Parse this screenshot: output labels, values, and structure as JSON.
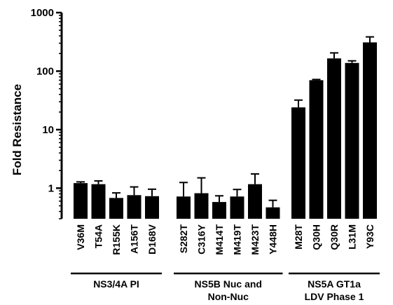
{
  "chart_data": {
    "type": "bar",
    "ylabel": "Fold Resistance",
    "y_scale": "log",
    "ylim": [
      0.3,
      1000
    ],
    "y_ticks": [
      1,
      10,
      100,
      1000
    ],
    "y_tick_labels": [
      "1",
      "10",
      "100",
      "1000"
    ],
    "bar_color": "#000000",
    "error_bars": true,
    "groups": [
      {
        "label_lines": [
          "NS3/4A PI"
        ],
        "categories": [
          "V36M",
          "T54A",
          "R155K",
          "A156T",
          "D168V"
        ],
        "values": [
          1.22,
          1.17,
          0.68,
          0.76,
          0.73
        ],
        "errors_upper": [
          1.28,
          1.33,
          0.83,
          1.05,
          0.96
        ]
      },
      {
        "label_lines": [
          "NS5B Nuc and",
          "Non-Nuc"
        ],
        "categories": [
          "S282T",
          "C316Y",
          "M414T",
          "M419T",
          "M423T",
          "Y448H"
        ],
        "values": [
          0.72,
          0.82,
          0.58,
          0.72,
          1.17,
          0.47
        ],
        "errors_upper": [
          1.25,
          1.5,
          0.74,
          0.95,
          1.75,
          0.62
        ]
      },
      {
        "label_lines": [
          "NS5A GT1a",
          "LDV Phase 1"
        ],
        "categories": [
          "M28T",
          "Q30H",
          "Q30R",
          "L31M",
          "Y93C"
        ],
        "values": [
          24,
          70,
          165,
          138,
          310
        ],
        "errors_upper": [
          32,
          72,
          205,
          150,
          385
        ]
      }
    ]
  }
}
